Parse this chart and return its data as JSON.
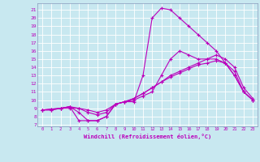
{
  "xlabel": "Windchill (Refroidissement éolien,°C)",
  "bg_color": "#c8e8f0",
  "line_color": "#bb00bb",
  "grid_color": "#ffffff",
  "xlim": [
    -0.5,
    23.5
  ],
  "ylim": [
    6.8,
    21.8
  ],
  "yticks": [
    7,
    8,
    9,
    10,
    11,
    12,
    13,
    14,
    15,
    16,
    17,
    18,
    19,
    20,
    21
  ],
  "xticks": [
    0,
    1,
    2,
    3,
    4,
    5,
    6,
    7,
    8,
    9,
    10,
    11,
    12,
    13,
    14,
    15,
    16,
    17,
    18,
    19,
    20,
    21,
    22,
    23
  ],
  "series": [
    {
      "x": [
        0,
        1,
        2,
        3,
        4,
        5,
        6,
        7,
        8,
        9,
        10,
        11,
        12,
        13,
        14,
        15,
        16,
        17,
        18,
        19,
        20,
        21,
        22,
        23
      ],
      "y": [
        8.8,
        8.8,
        9.0,
        9.2,
        7.5,
        7.5,
        7.5,
        8.0,
        9.5,
        9.8,
        9.8,
        13.0,
        20.0,
        21.2,
        21.0,
        20.0,
        19.0,
        18.0,
        17.0,
        16.0,
        14.5,
        13.0,
        11.0,
        10.0
      ]
    },
    {
      "x": [
        0,
        1,
        2,
        3,
        4,
        5,
        6,
        7,
        8,
        9,
        10,
        11,
        12,
        13,
        14,
        15,
        16,
        17,
        18,
        19,
        20,
        21,
        22,
        23
      ],
      "y": [
        8.8,
        8.8,
        9.0,
        9.2,
        8.5,
        7.5,
        7.5,
        8.0,
        9.5,
        9.8,
        10.0,
        10.5,
        11.0,
        13.0,
        15.0,
        16.0,
        15.5,
        15.0,
        15.0,
        15.0,
        14.5,
        13.0,
        11.0,
        10.0
      ]
    },
    {
      "x": [
        0,
        1,
        2,
        3,
        4,
        5,
        6,
        7,
        8,
        9,
        10,
        11,
        12,
        13,
        14,
        15,
        16,
        17,
        18,
        19,
        20,
        21,
        22,
        23
      ],
      "y": [
        8.8,
        8.9,
        9.0,
        9.2,
        9.0,
        8.5,
        8.2,
        8.5,
        9.5,
        9.8,
        10.2,
        10.8,
        11.5,
        12.2,
        13.0,
        13.5,
        14.0,
        14.5,
        15.0,
        15.5,
        15.0,
        14.0,
        11.5,
        10.2
      ]
    },
    {
      "x": [
        0,
        1,
        2,
        3,
        4,
        5,
        6,
        7,
        8,
        9,
        10,
        11,
        12,
        13,
        14,
        15,
        16,
        17,
        18,
        19,
        20,
        21,
        22,
        23
      ],
      "y": [
        8.8,
        8.9,
        9.0,
        9.0,
        9.0,
        8.8,
        8.5,
        8.8,
        9.5,
        9.8,
        10.2,
        10.8,
        11.5,
        12.2,
        12.8,
        13.3,
        13.8,
        14.3,
        14.5,
        14.8,
        14.5,
        13.5,
        11.0,
        10.0
      ]
    }
  ]
}
